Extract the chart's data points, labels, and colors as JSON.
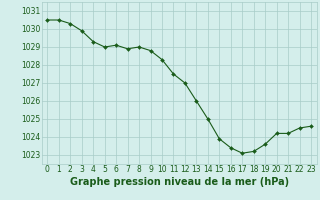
{
  "x": [
    0,
    1,
    2,
    3,
    4,
    5,
    6,
    7,
    8,
    9,
    10,
    11,
    12,
    13,
    14,
    15,
    16,
    17,
    18,
    19,
    20,
    21,
    22,
    23
  ],
  "y": [
    1030.5,
    1030.5,
    1030.3,
    1029.9,
    1029.3,
    1029.0,
    1029.1,
    1028.9,
    1029.0,
    1028.8,
    1028.3,
    1027.5,
    1027.0,
    1026.0,
    1025.0,
    1023.9,
    1023.4,
    1023.1,
    1023.2,
    1023.6,
    1024.2,
    1024.2,
    1024.5,
    1024.6
  ],
  "line_color": "#1a5c1a",
  "marker_color": "#1a5c1a",
  "bg_color": "#d4eeeb",
  "grid_color": "#a8ccc8",
  "xlabel": "Graphe pression niveau de la mer (hPa)",
  "xlabel_color": "#1a5c1a",
  "tick_color": "#1a5c1a",
  "ylim": [
    1022.5,
    1031.5
  ],
  "yticks": [
    1023,
    1024,
    1025,
    1026,
    1027,
    1028,
    1029,
    1030,
    1031
  ],
  "xlim": [
    -0.5,
    23.5
  ],
  "tick_fontsize": 5.5,
  "xlabel_fontsize": 7.0
}
